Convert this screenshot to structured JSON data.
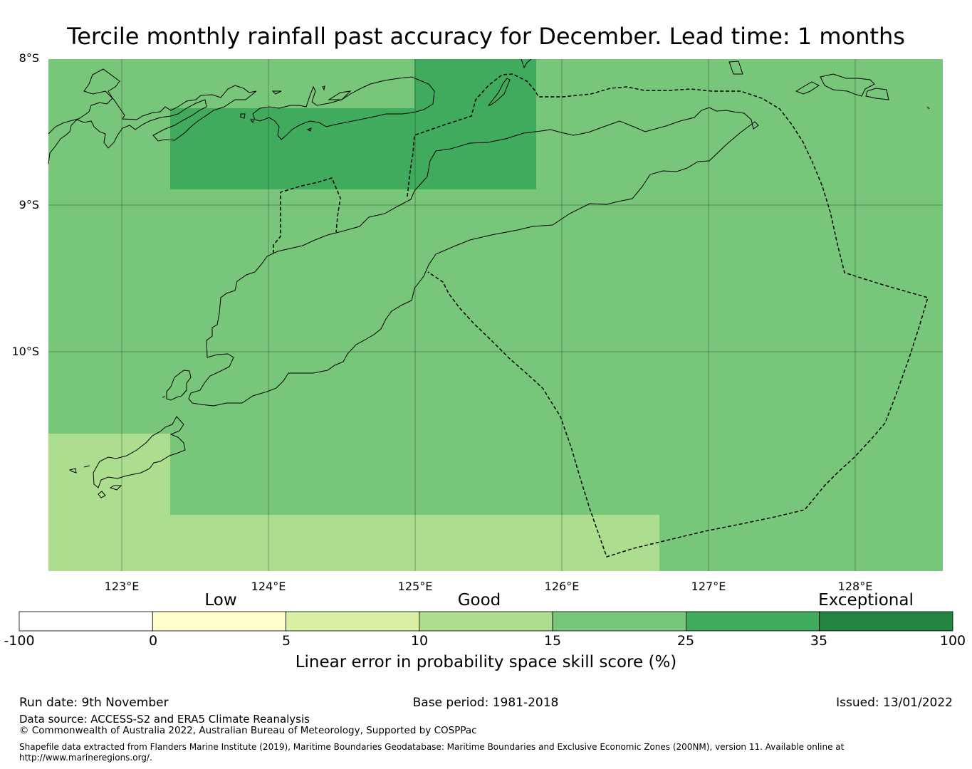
{
  "title": "Tercile monthly rainfall past accuracy for December. Lead time: 1 months",
  "map": {
    "lat_labels": [
      "8°S",
      "9°S",
      "10°S"
    ],
    "lon_labels": [
      "123°E",
      "124°E",
      "125°E",
      "126°E",
      "127°E",
      "128°E"
    ],
    "extent": {
      "lon_min": 122.5,
      "lon_max": 128.6,
      "lat_max": -8.0,
      "lat_min": -11.5
    },
    "cells": [
      {
        "region": "background",
        "bin": "15-25"
      },
      {
        "region": "north-central block",
        "bin": "25-35"
      },
      {
        "region": "south-west block",
        "bin": "10-15"
      },
      {
        "region": "south strip",
        "bin": "10-15"
      }
    ]
  },
  "colorbar": {
    "categories": [
      "Low",
      "Good",
      "Exceptional"
    ],
    "ticks": [
      "-100",
      "0",
      "5",
      "10",
      "15",
      "25",
      "35",
      "100"
    ],
    "colors": [
      "#ffffff",
      "#ffffcc",
      "#d9f0a3",
      "#addd8e",
      "#78c679",
      "#41ab5d",
      "#238443"
    ],
    "label": "Linear error in probability space skill score (%)"
  },
  "footer": {
    "run_date": "Run date: 9th November",
    "base_period": "Base period: 1981-2018",
    "issued": "Issued: 13/01/2022",
    "data_source": "Data source: ACCESS-S2 and ERA5 Climate Reanalysis",
    "copyright": "© Commonwealth of Australia 2022, Australian Bureau of Meteorology, Supported by COSPPac",
    "shapefile": "Shapefile data extracted from Flanders Marine Institute (2019), Maritime Boundaries Geodatabase: Maritime Boundaries and Exclusive Economic Zones (200NM), version 11. Available online at http://www.marineregions.org/."
  }
}
